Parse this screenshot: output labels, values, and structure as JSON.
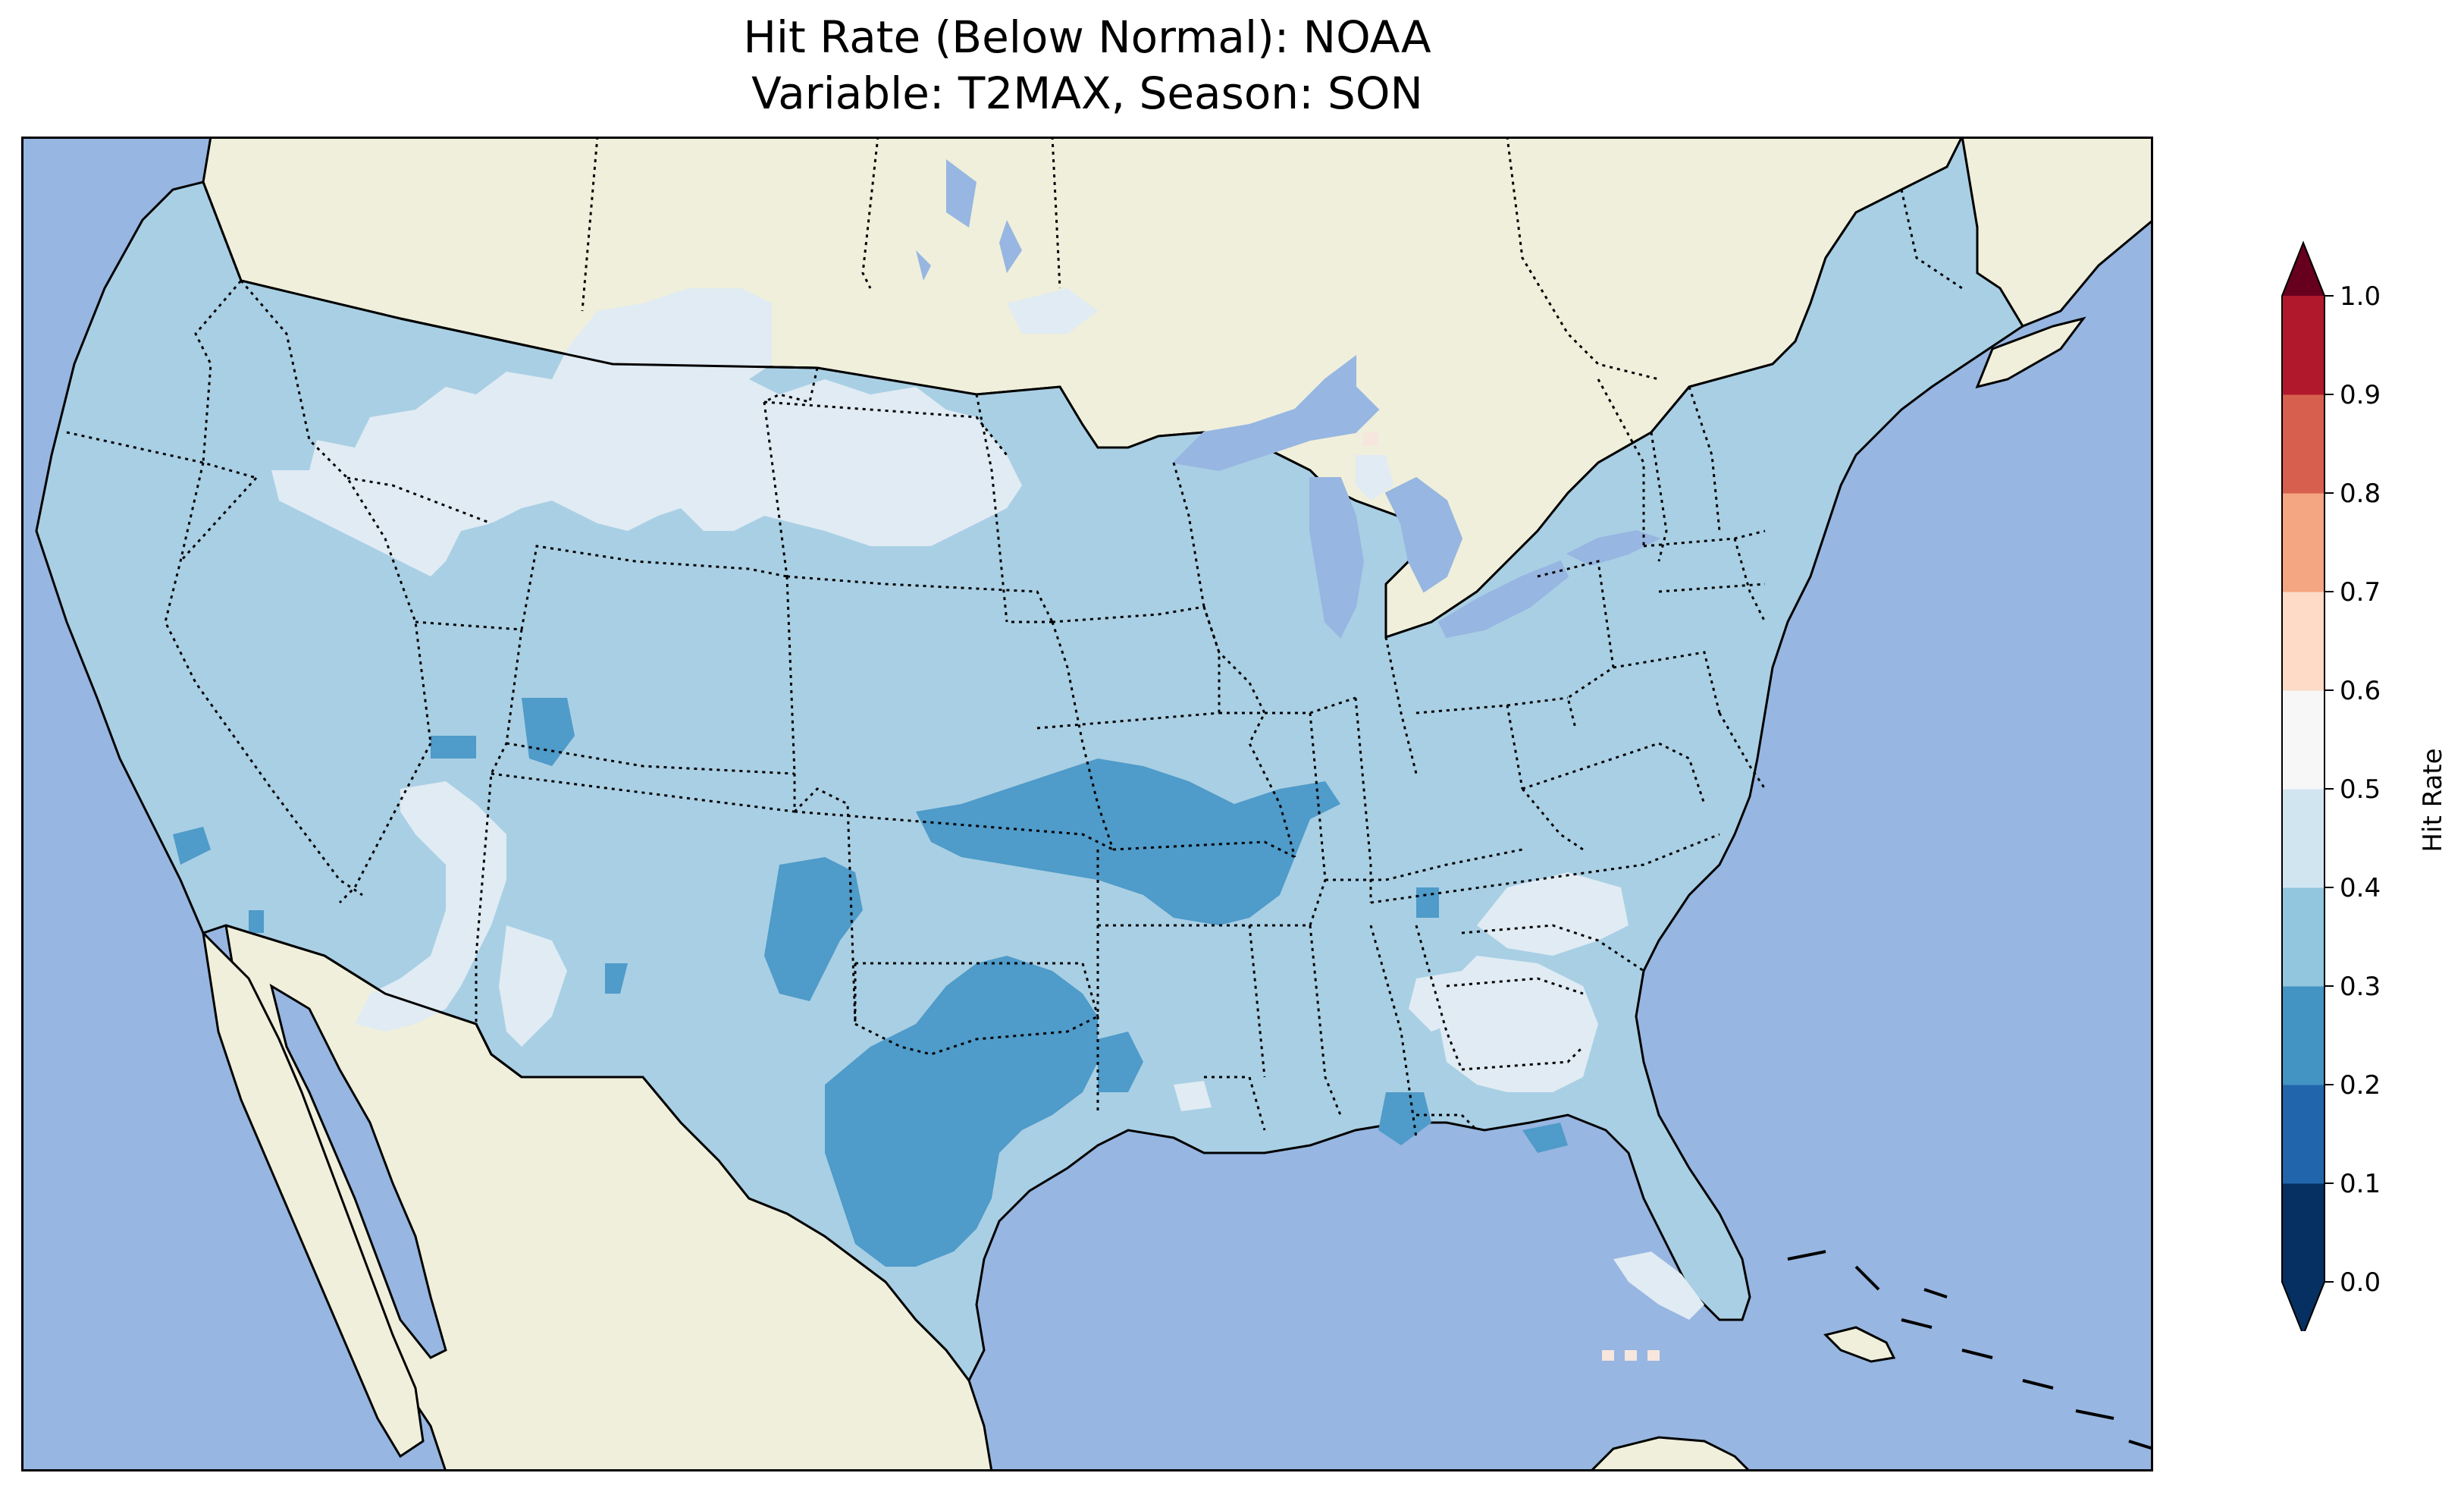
{
  "title_line1": "Hit Rate (Below Normal): NOAA",
  "title_line2": "Variable: T2MAX, Season: SON",
  "colorbar": {
    "label": "Hit Rate",
    "ticks": [
      "0.0",
      "0.1",
      "0.2",
      "0.3",
      "0.4",
      "0.5",
      "0.6",
      "0.7",
      "0.8",
      "0.9",
      "1.0"
    ],
    "colors": [
      "#053061",
      "#2166ac",
      "#4393c3",
      "#92c5de",
      "#d1e5f0",
      "#f7f7f7",
      "#fddbc7",
      "#f4a582",
      "#d6604d",
      "#b2182b",
      "#67001f"
    ]
  },
  "map": {
    "ocean_color": "#97b6e1",
    "land_color": "#efefdb",
    "lakes": [
      "Lake Superior",
      "Lake Michigan",
      "Lake Huron",
      "Lake Erie",
      "Lake Ontario"
    ],
    "field_levels": [
      {
        "range": "0.2–0.3",
        "color": "#4f9bc9"
      },
      {
        "range": "0.3–0.4",
        "color": "#a9cfe4"
      },
      {
        "range": "0.4–0.5",
        "color": "#e0ebf3"
      },
      {
        "range": "0.5–0.6",
        "color": "#f7e6de"
      }
    ]
  }
}
